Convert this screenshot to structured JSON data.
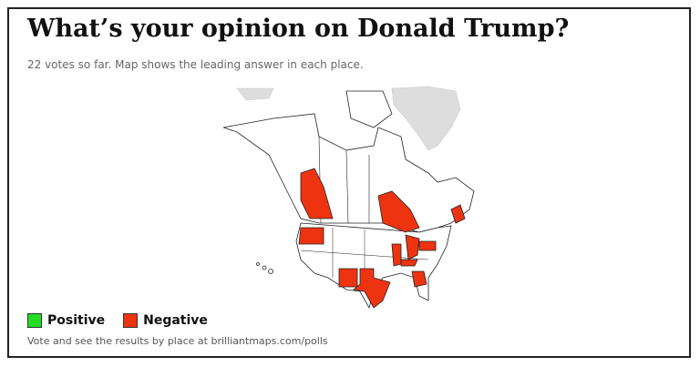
{
  "header": {
    "title": "What’s your opinion on Donald Trump?",
    "subtitle": "22 votes so far. Map shows the leading answer in each place."
  },
  "legend": [
    {
      "label": "Positive",
      "color": "#22dd22"
    },
    {
      "label": "Negative",
      "color": "#ee3311"
    }
  ],
  "footer": "Vote and see the results by place at brilliantmaps.com/polls"
}
